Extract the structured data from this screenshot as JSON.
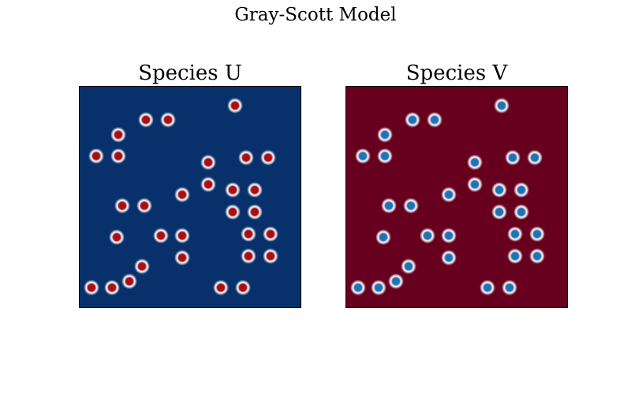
{
  "figure": {
    "title": "Gray-Scott Model"
  },
  "panels": [
    {
      "title": "Species U",
      "background": "#08306b",
      "spot_outer": "#ffffff",
      "spot_core": "#a50f15"
    },
    {
      "title": "Species V",
      "background": "#67001f",
      "spot_outer": "#ffffff",
      "spot_core": "#2171b5"
    }
  ]
}
